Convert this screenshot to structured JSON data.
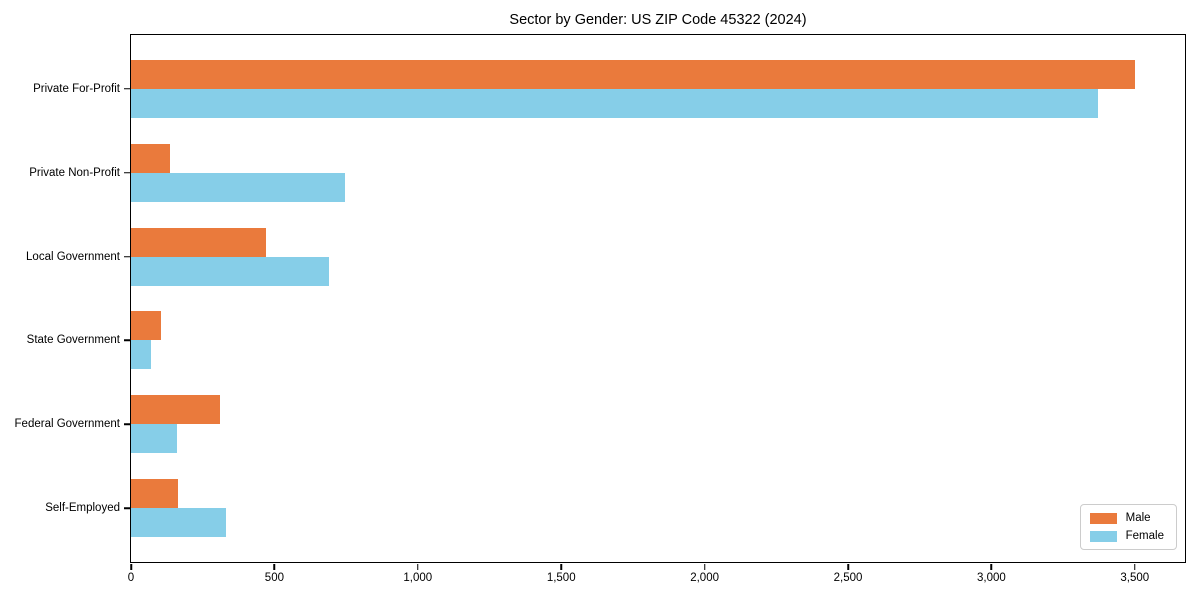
{
  "title": "Sector by Gender: US ZIP Code 45322 (2024)",
  "colors": {
    "male": "#ea7a3c",
    "female": "#86cee8",
    "axis": "#000000",
    "legend_border": "#cccccc",
    "background": "#ffffff"
  },
  "chart_data": {
    "type": "bar",
    "orientation": "horizontal",
    "title": "Sector by Gender: US ZIP Code 45322 (2024)",
    "xlabel": "",
    "ylabel": "",
    "categories": [
      "Private For-Profit",
      "Private Non-Profit",
      "Local Government",
      "State Government",
      "Federal Government",
      "Self-Employed"
    ],
    "series": [
      {
        "name": "Male",
        "color": "#ea7a3c",
        "values": [
          3500,
          135,
          470,
          105,
          310,
          165
        ]
      },
      {
        "name": "Female",
        "color": "#86cee8",
        "values": [
          3370,
          745,
          690,
          70,
          160,
          330
        ]
      }
    ],
    "xlim": [
      0,
      3675
    ],
    "xticks": [
      0,
      500,
      1000,
      1500,
      2000,
      2500,
      3000,
      3500
    ],
    "xtick_labels": [
      "0",
      "500",
      "1,000",
      "1,500",
      "2,000",
      "2,500",
      "3,000",
      "3,500"
    ],
    "grid": false,
    "legend": {
      "position": "lower-right",
      "entries": [
        "Male",
        "Female"
      ]
    }
  }
}
